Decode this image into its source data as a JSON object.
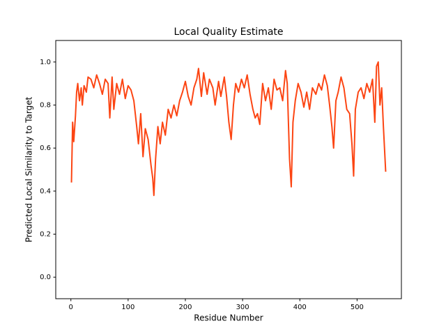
{
  "chart_data": {
    "type": "line",
    "title": "Local Quality Estimate",
    "x_label": "Residue Number",
    "y_label": "Predicted Local Similarity to Target",
    "x": [
      1,
      3,
      5,
      8,
      10,
      12,
      15,
      18,
      20,
      23,
      27,
      30,
      35,
      40,
      45,
      50,
      55,
      60,
      65,
      68,
      72,
      75,
      80,
      85,
      90,
      95,
      100,
      105,
      110,
      115,
      118,
      122,
      126,
      130,
      135,
      140,
      143,
      145,
      148,
      152,
      156,
      160,
      165,
      170,
      175,
      180,
      185,
      190,
      195,
      200,
      205,
      210,
      215,
      220,
      223,
      228,
      232,
      238,
      242,
      248,
      252,
      258,
      262,
      268,
      272,
      276,
      280,
      284,
      288,
      293,
      298,
      303,
      308,
      313,
      318,
      322,
      326,
      330,
      335,
      340,
      345,
      350,
      355,
      360,
      365,
      370,
      375,
      378,
      382,
      385,
      388,
      392,
      397,
      402,
      407,
      412,
      417,
      422,
      428,
      433,
      438,
      443,
      448,
      452,
      456,
      459,
      463,
      467,
      472,
      477,
      482,
      487,
      491,
      494,
      497,
      502,
      507,
      512,
      517,
      522,
      527,
      531,
      534,
      537,
      540,
      543,
      546,
      550
    ],
    "series": [
      {
        "color": "#fc4513",
        "values": [
          0.44,
          0.72,
          0.63,
          0.75,
          0.86,
          0.9,
          0.82,
          0.88,
          0.8,
          0.89,
          0.86,
          0.93,
          0.92,
          0.88,
          0.94,
          0.9,
          0.85,
          0.92,
          0.9,
          0.74,
          0.93,
          0.78,
          0.9,
          0.85,
          0.92,
          0.83,
          0.89,
          0.87,
          0.82,
          0.7,
          0.62,
          0.76,
          0.56,
          0.69,
          0.64,
          0.52,
          0.46,
          0.38,
          0.55,
          0.7,
          0.62,
          0.72,
          0.66,
          0.78,
          0.74,
          0.8,
          0.75,
          0.82,
          0.86,
          0.91,
          0.84,
          0.8,
          0.88,
          0.92,
          0.97,
          0.84,
          0.95,
          0.85,
          0.92,
          0.88,
          0.8,
          0.91,
          0.84,
          0.93,
          0.84,
          0.72,
          0.64,
          0.8,
          0.9,
          0.86,
          0.92,
          0.88,
          0.94,
          0.85,
          0.78,
          0.74,
          0.76,
          0.71,
          0.9,
          0.82,
          0.88,
          0.78,
          0.92,
          0.87,
          0.88,
          0.82,
          0.96,
          0.9,
          0.55,
          0.42,
          0.72,
          0.82,
          0.9,
          0.86,
          0.79,
          0.86,
          0.78,
          0.88,
          0.85,
          0.9,
          0.87,
          0.94,
          0.89,
          0.8,
          0.7,
          0.6,
          0.82,
          0.86,
          0.93,
          0.88,
          0.78,
          0.76,
          0.62,
          0.47,
          0.78,
          0.86,
          0.88,
          0.83,
          0.9,
          0.86,
          0.92,
          0.72,
          0.98,
          1.0,
          0.8,
          0.88,
          0.7,
          0.49
        ]
      }
    ],
    "xlim": [
      -26.45,
      577.45
    ],
    "ylim": [
      -0.1,
      1.1
    ],
    "xticks": [
      0,
      100,
      200,
      300,
      400,
      500
    ],
    "yticks": [
      {
        "value": 0,
        "label": "0.0"
      },
      0.2,
      0.4,
      0.6,
      0.8,
      {
        "value": 1,
        "label": "1.0"
      }
    ]
  }
}
